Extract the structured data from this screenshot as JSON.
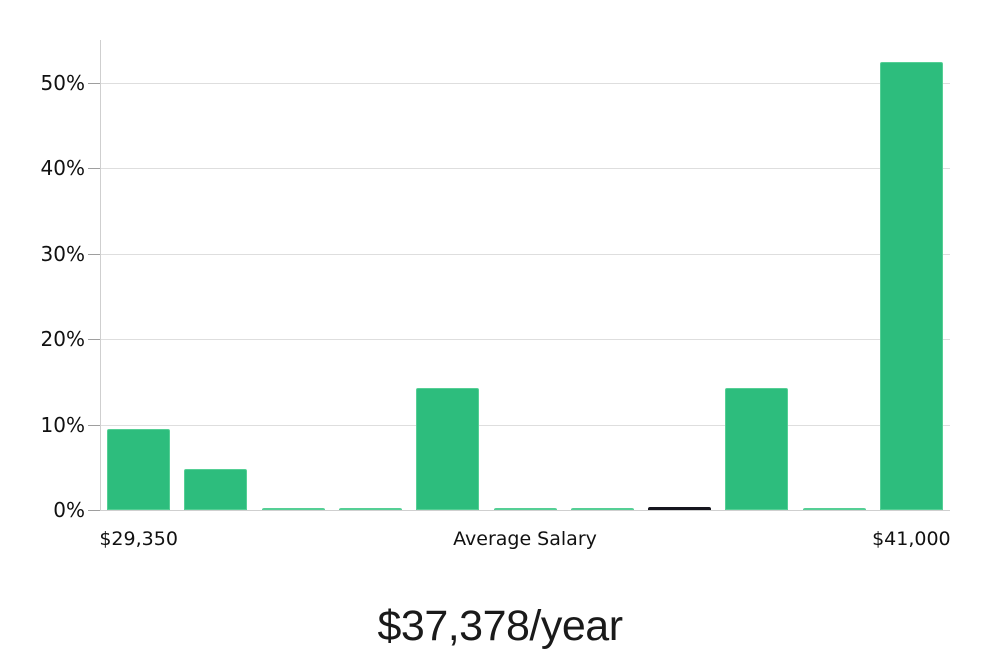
{
  "title": {
    "text": "$37,378/year"
  },
  "colors": {
    "bar": "#2dbd7d",
    "bar_border": "#55cf95",
    "highlight_bar": "#16161e",
    "gridline": "#dedede",
    "axis": "#cfcfcf",
    "tick": "#9e9e9e",
    "label_text": "#111111",
    "title_text": "#1a1a1a",
    "background": "#ffffff"
  },
  "chart_data": {
    "type": "bar",
    "title": "$37,378/year",
    "xlabel": "",
    "ylabel": "",
    "values": [
      9.5,
      4.8,
      0.2,
      0.2,
      14.3,
      0.2,
      0.2,
      0.3,
      14.3,
      0.2,
      52.4
    ],
    "highlight_index": 7,
    "x_axis_labels": [
      {
        "bin": 0,
        "text": "$29,350"
      },
      {
        "bin": 5,
        "text": "Average Salary"
      },
      {
        "bin": 10,
        "text": "$41,000"
      }
    ],
    "y_ticks": [
      {
        "value": 0,
        "label": "0%"
      },
      {
        "value": 10,
        "label": "10%"
      },
      {
        "value": 20,
        "label": "20%"
      },
      {
        "value": 30,
        "label": "30%"
      },
      {
        "value": 40,
        "label": "40%"
      },
      {
        "value": 50,
        "label": "50%"
      }
    ],
    "ylim": [
      0,
      55
    ],
    "grid": true,
    "legend": false
  }
}
